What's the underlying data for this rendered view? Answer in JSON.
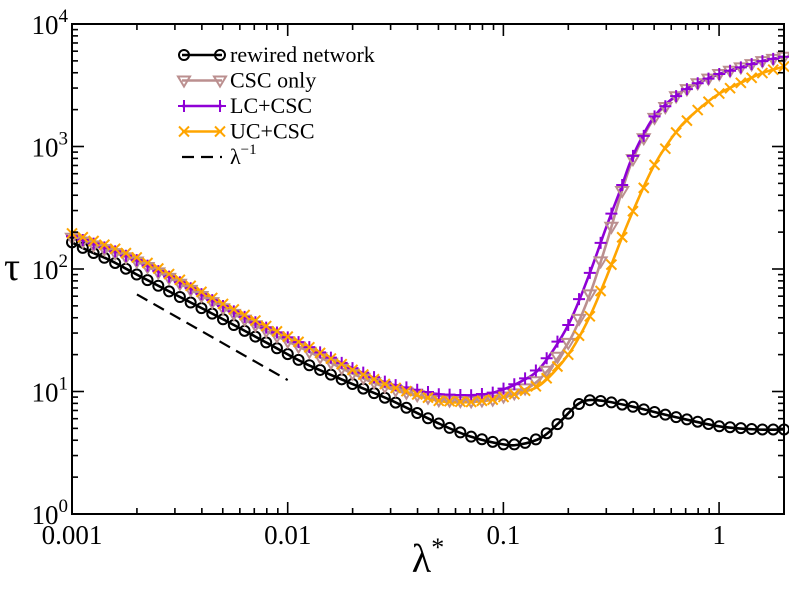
{
  "chart_data": {
    "type": "line",
    "x_scale": "log",
    "y_scale": "log",
    "xlabel": "λ",
    "xlabel_superscript": "*",
    "ylabel": "τ",
    "xlim": [
      0.001,
      2.0
    ],
    "ylim": [
      1,
      10000
    ],
    "x_ticks": [
      {
        "value": 0.001,
        "label": "0.001"
      },
      {
        "value": 0.01,
        "label": "0.01"
      },
      {
        "value": 0.1,
        "label": "0.1"
      },
      {
        "value": 1,
        "label": "1"
      }
    ],
    "y_ticks": [
      {
        "value": 1,
        "base": "10",
        "exp": "0"
      },
      {
        "value": 10,
        "base": "10",
        "exp": "1"
      },
      {
        "value": 100,
        "base": "10",
        "exp": "2"
      },
      {
        "value": 1000,
        "base": "10",
        "exp": "3"
      },
      {
        "value": 10000,
        "base": "10",
        "exp": "4"
      }
    ],
    "legend_position": "top-left",
    "series": [
      {
        "name": "rewired network",
        "color": "#000000",
        "marker": "circle",
        "x": [
          0.001,
          0.0012,
          0.0015,
          0.002,
          0.003,
          0.005,
          0.008,
          0.012,
          0.02,
          0.03,
          0.05,
          0.07,
          0.1,
          0.12,
          0.15,
          0.18,
          0.22,
          0.25,
          0.3,
          0.4,
          0.6,
          1.0,
          1.5,
          2.0
        ],
        "y": [
          165,
          140,
          118,
          90,
          62,
          39,
          25,
          17,
          11.5,
          8.5,
          5.5,
          4.3,
          3.7,
          3.7,
          4.2,
          5.5,
          7.8,
          8.5,
          8.3,
          7.5,
          6.3,
          5.2,
          4.9,
          4.9
        ]
      },
      {
        "name": "CSC only",
        "color": "#bb8f8f",
        "marker": "triangle-down",
        "x": [
          0.001,
          0.0015,
          0.002,
          0.003,
          0.005,
          0.008,
          0.012,
          0.02,
          0.03,
          0.05,
          0.07,
          0.09,
          0.12,
          0.15,
          0.2,
          0.25,
          0.3,
          0.35,
          0.4,
          0.5,
          0.65,
          0.8,
          1.0,
          1.3,
          1.6,
          2.0
        ],
        "y": [
          180,
          140,
          115,
          80,
          48,
          31,
          22,
          14,
          10.5,
          8.5,
          8.3,
          8.6,
          10,
          13,
          25,
          60,
          160,
          400,
          800,
          1700,
          2700,
          3300,
          3900,
          4500,
          5000,
          5400
        ]
      },
      {
        "name": "LC+CSC",
        "color": "#8f00d6",
        "marker": "plus",
        "x": [
          0.001,
          0.0015,
          0.002,
          0.003,
          0.005,
          0.008,
          0.012,
          0.02,
          0.03,
          0.05,
          0.07,
          0.09,
          0.12,
          0.15,
          0.2,
          0.25,
          0.3,
          0.35,
          0.4,
          0.5,
          0.65,
          0.8,
          1.0,
          1.3,
          1.6,
          2.0
        ],
        "y": [
          185,
          145,
          118,
          82,
          50,
          33,
          24,
          15.5,
          11.5,
          9.5,
          9.3,
          9.8,
          12,
          16,
          35,
          90,
          220,
          450,
          850,
          1750,
          2700,
          3300,
          3900,
          4500,
          5000,
          5400
        ]
      },
      {
        "name": "UC+CSC",
        "color": "#ffa500",
        "marker": "x",
        "x": [
          0.001,
          0.0015,
          0.002,
          0.003,
          0.005,
          0.008,
          0.012,
          0.02,
          0.03,
          0.05,
          0.07,
          0.09,
          0.12,
          0.15,
          0.2,
          0.25,
          0.3,
          0.35,
          0.4,
          0.5,
          0.65,
          0.8,
          1.0,
          1.3,
          1.6,
          2.0
        ],
        "y": [
          195,
          152,
          124,
          86,
          52,
          34,
          24,
          15,
          11,
          8.4,
          8.2,
          8.6,
          9.8,
          11.5,
          20,
          40,
          85,
          170,
          300,
          700,
          1400,
          2000,
          2700,
          3400,
          4000,
          4500
        ]
      }
    ],
    "reference_line": {
      "name": "λ",
      "superscript": "−1",
      "color": "#000000",
      "style": "dashed",
      "x": [
        0.002,
        0.01
      ],
      "y": [
        62,
        12.4
      ]
    }
  }
}
